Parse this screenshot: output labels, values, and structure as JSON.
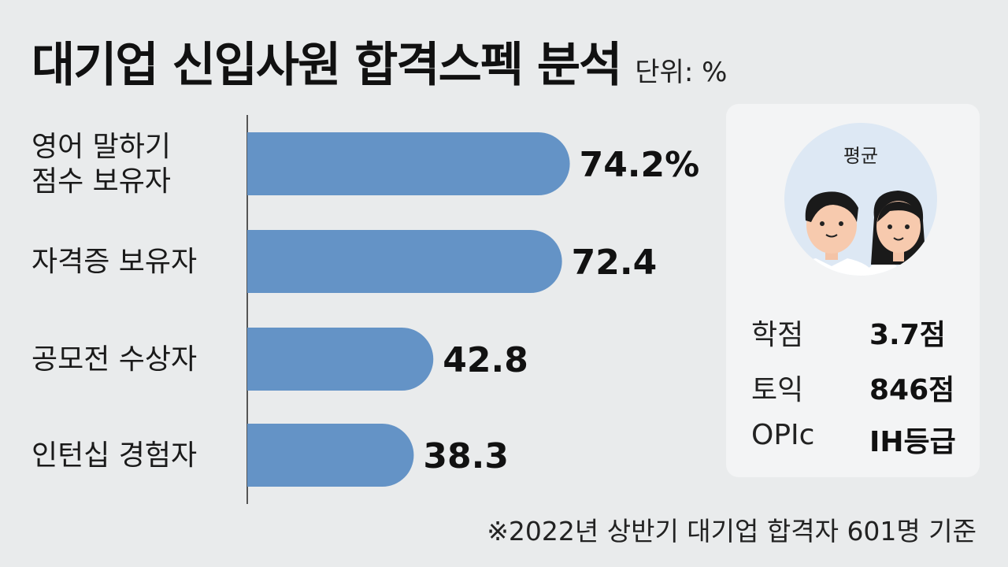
{
  "header": {
    "title": "대기업 신입사원 합격스펙 분석",
    "unit": "단위: %"
  },
  "chart_data": {
    "type": "bar",
    "orientation": "horizontal",
    "categories": [
      [
        "영어 말하기",
        "점수 보유자"
      ],
      [
        "자격증 보유자"
      ],
      [
        "공모전 수상자"
      ],
      [
        "인턴십 경험자"
      ]
    ],
    "values": [
      74.2,
      72.4,
      42.8,
      38.3
    ],
    "value_labels": [
      "74.2%",
      "72.4",
      "42.8",
      "38.3"
    ],
    "xlim": [
      0,
      80
    ],
    "bar_color": "#6493c6"
  },
  "average_card": {
    "label": "평균",
    "stats": [
      {
        "key": "학점",
        "value": "3.7점"
      },
      {
        "key": "토익",
        "value": "846점"
      },
      {
        "key": "OPIc",
        "value": "IH등급"
      }
    ]
  },
  "footnote": "※2022년 상반기 대기업 합격자 601명 기준"
}
